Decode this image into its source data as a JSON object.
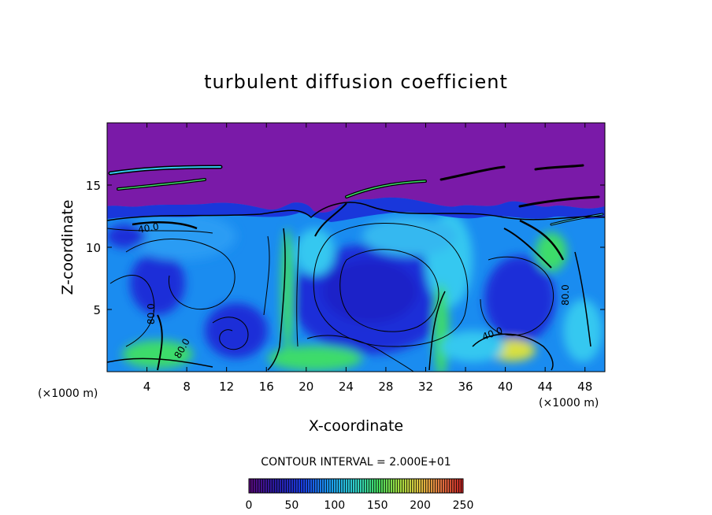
{
  "chart_data": {
    "type": "heatmap",
    "title": "turbulent diffusion coefficient",
    "xlabel": "X-coordinate",
    "ylabel": "Z-coordinate",
    "x_unit_label_left": "(×1000 m)",
    "x_unit_label_right": "(×1000 m)",
    "xlim": [
      0,
      50
    ],
    "ylim": [
      0,
      20
    ],
    "x_ticks": [
      4,
      8,
      12,
      16,
      20,
      24,
      28,
      32,
      36,
      40,
      44,
      48
    ],
    "y_ticks": [
      5,
      10,
      15
    ],
    "contour_interval_label": "CONTOUR INTERVAL = 2.000E+01",
    "contour_labels": [
      "40.0",
      "80.0",
      "80.0",
      "40.0",
      "80.0"
    ],
    "colorbar": {
      "ticks": [
        0,
        50,
        100,
        150,
        200,
        250
      ],
      "range": [
        0,
        250
      ]
    },
    "colors": {
      "top_layer": "#7a1aa8",
      "deep_blue": "#1a2ed8",
      "mid_blue": "#1a8cf0",
      "light_blue": "#35c8f0",
      "green": "#3ddc6a",
      "yellow": "#d8e040"
    }
  }
}
